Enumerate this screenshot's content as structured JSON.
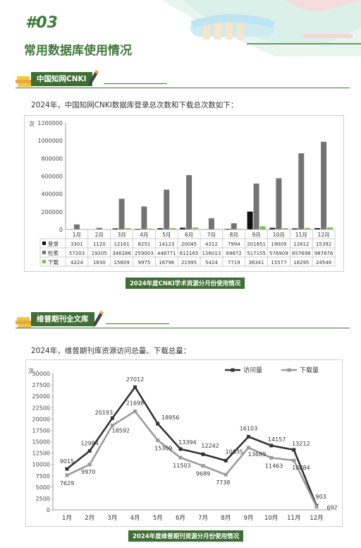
{
  "header": {
    "number": "#03",
    "title": "常用数据库使用情况"
  },
  "sections": [
    {
      "tag": "中国知网CNKI",
      "intro": "2024年，中国知网CNKI数据库登录总次数和下载总次数如下：",
      "caption": "2024年度CNKI学术资源分月份使用情况"
    },
    {
      "tag": "维普期刊全文库",
      "intro": "2024年，维普期刊库资源访问总量、下载总量：",
      "caption": "2024年度维普期刊资源分月份使用情况"
    }
  ],
  "chart_data": [
    {
      "type": "bar",
      "unit_label": "次",
      "categories": [
        "1月",
        "2月",
        "3月",
        "4月",
        "5月",
        "6月",
        "7月",
        "8月",
        "9月",
        "10月",
        "11月",
        "12月"
      ],
      "ylim": [
        0,
        1200000
      ],
      "yticks": [
        "0",
        "200000",
        "400000",
        "600000",
        "800000",
        "1000000",
        "1200000"
      ],
      "series": [
        {
          "name": "登录",
          "color": "#111111",
          "values": [
            3301,
            1120,
            12161,
            8251,
            14123,
            20045,
            4312,
            7994,
            201851,
            19009,
            12812,
            15392
          ]
        },
        {
          "name": "检索",
          "color": "#737373",
          "values": [
            57203,
            19205,
            346286,
            259003,
            448771,
            612165,
            126013,
            69872,
            517155,
            576909,
            857698,
            987676
          ]
        },
        {
          "name": "下载",
          "color": "#7cc242",
          "values": [
            4224,
            1830,
            15609,
            9975,
            16796,
            21995,
            5424,
            7719,
            36341,
            15577,
            18295,
            24548
          ]
        }
      ],
      "legend": "bottom-table",
      "grid": false
    },
    {
      "type": "line",
      "unit_label": "次",
      "categories": [
        "1月",
        "2月",
        "3月",
        "4月",
        "5月",
        "6月",
        "7月",
        "8月",
        "9月",
        "10月",
        "11月",
        "12月"
      ],
      "ylim": [
        0,
        30000
      ],
      "yticks": [
        "0",
        "2500",
        "5000",
        "7500",
        "10000",
        "12500",
        "15000",
        "17500",
        "20000",
        "22500",
        "25000",
        "27500",
        "30000"
      ],
      "series": [
        {
          "name": "访问量",
          "color": "#333333",
          "values": [
            9015,
            12984,
            20193,
            27012,
            18956,
            13394,
            12242,
            10835,
            16103,
            14157,
            13212,
            903
          ]
        },
        {
          "name": "下载量",
          "color": "#9a9a9a",
          "values": [
            7629,
            9970,
            18592,
            21698,
            15309,
            11503,
            9689,
            7738,
            13689,
            11463,
            10884,
            692
          ]
        }
      ],
      "legend": "top-right",
      "grid": false
    }
  ]
}
